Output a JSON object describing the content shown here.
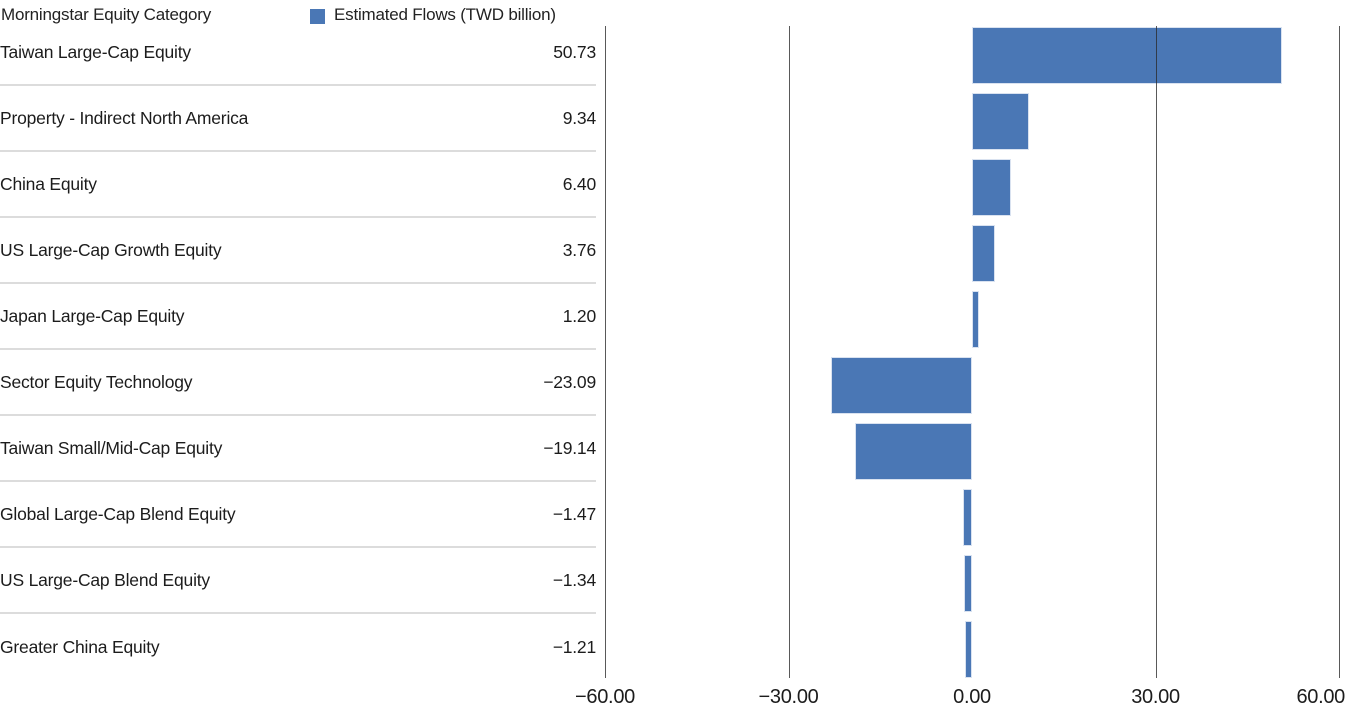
{
  "header": {
    "title": "Morningstar Equity Category",
    "legend_label": "Estimated Flows (TWD billion)"
  },
  "table": {
    "rows": [
      {
        "label": "Taiwan Large-Cap Equity",
        "value": "50.73"
      },
      {
        "label": "Property - Indirect North America",
        "value": "9.34"
      },
      {
        "label": "China Equity",
        "value": "6.40"
      },
      {
        "label": "US Large-Cap Growth Equity",
        "value": "3.76"
      },
      {
        "label": "Japan Large-Cap Equity",
        "value": "1.20"
      },
      {
        "label": "Sector Equity Technology",
        "value": "−23.09"
      },
      {
        "label": "Taiwan Small/Mid-Cap Equity",
        "value": "−19.14"
      },
      {
        "label": "Global Large-Cap Blend Equity",
        "value": "−1.47"
      },
      {
        "label": "US Large-Cap Blend Equity",
        "value": "−1.34"
      },
      {
        "label": "Greater China Equity",
        "value": "−1.21"
      }
    ]
  },
  "chart_data": {
    "type": "bar",
    "orientation": "horizontal",
    "title": "Morningstar Equity Category",
    "categories": [
      "Taiwan Large-Cap Equity",
      "Property - Indirect North America",
      "China Equity",
      "US Large-Cap Growth Equity",
      "Japan Large-Cap Equity",
      "Sector Equity Technology",
      "Taiwan Small/Mid-Cap Equity",
      "Global Large-Cap Blend Equity",
      "US Large-Cap Blend Equity",
      "Greater China Equity"
    ],
    "series": [
      {
        "name": "Estimated Flows (TWD billion)",
        "values": [
          50.73,
          9.34,
          6.4,
          3.76,
          1.2,
          -23.09,
          -19.14,
          -1.47,
          -1.34,
          -1.21
        ]
      }
    ],
    "xlabel": "Estimated Flows (TWD billion)",
    "ylabel": "Morningstar Equity Category",
    "xlim": [
      -60,
      60
    ],
    "x_ticks": [
      -60,
      -30,
      0,
      30,
      60
    ],
    "x_tick_labels": [
      "−60.00",
      "−30.00",
      "0.00",
      "30.00",
      "60.00"
    ],
    "grid": "vertical gridlines at ticks except zero, drawn over bars",
    "legend_position": "top"
  },
  "colors": {
    "bar": "#4a77b5",
    "legend_swatch": "#4a77b5",
    "gridline": "#2a2a2a",
    "row_separator": "#dcdcdc",
    "text": "#1c1c1c"
  }
}
